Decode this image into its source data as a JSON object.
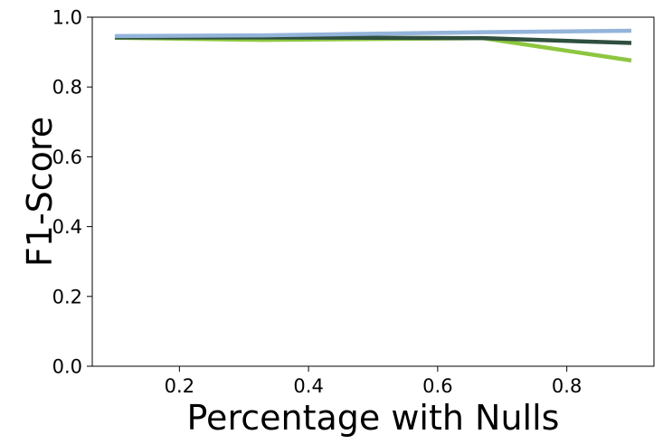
{
  "chart_data": {
    "type": "line",
    "title": "",
    "xlabel": "Percentage with Nulls",
    "ylabel": "F1-Score",
    "xlim": [
      0.065,
      0.935
    ],
    "ylim": [
      0.0,
      1.0
    ],
    "xticks": [
      0.2,
      0.4,
      0.6,
      0.8
    ],
    "xtick_labels": [
      "0.2",
      "0.4",
      "0.6",
      "0.8"
    ],
    "yticks": [
      0.0,
      0.2,
      0.4,
      0.6,
      0.8,
      1.0
    ],
    "ytick_labels": [
      "0.0",
      "0.2",
      "0.4",
      "0.6",
      "0.8",
      "1.0"
    ],
    "grid": false,
    "legend": "none",
    "series": [
      {
        "color": "#8dc63f",
        "x": [
          0.1,
          0.33,
          0.67,
          0.9
        ],
        "y": [
          0.941,
          0.935,
          0.94,
          0.876
        ]
      },
      {
        "color": "#2f4f3f",
        "x": [
          0.1,
          0.33,
          0.67,
          0.9
        ],
        "y": [
          0.942,
          0.942,
          0.94,
          0.926
        ]
      },
      {
        "color": "#94b4da",
        "x": [
          0.1,
          0.33,
          0.67,
          0.9
        ],
        "y": [
          0.946,
          0.948,
          0.957,
          0.961
        ]
      }
    ]
  }
}
